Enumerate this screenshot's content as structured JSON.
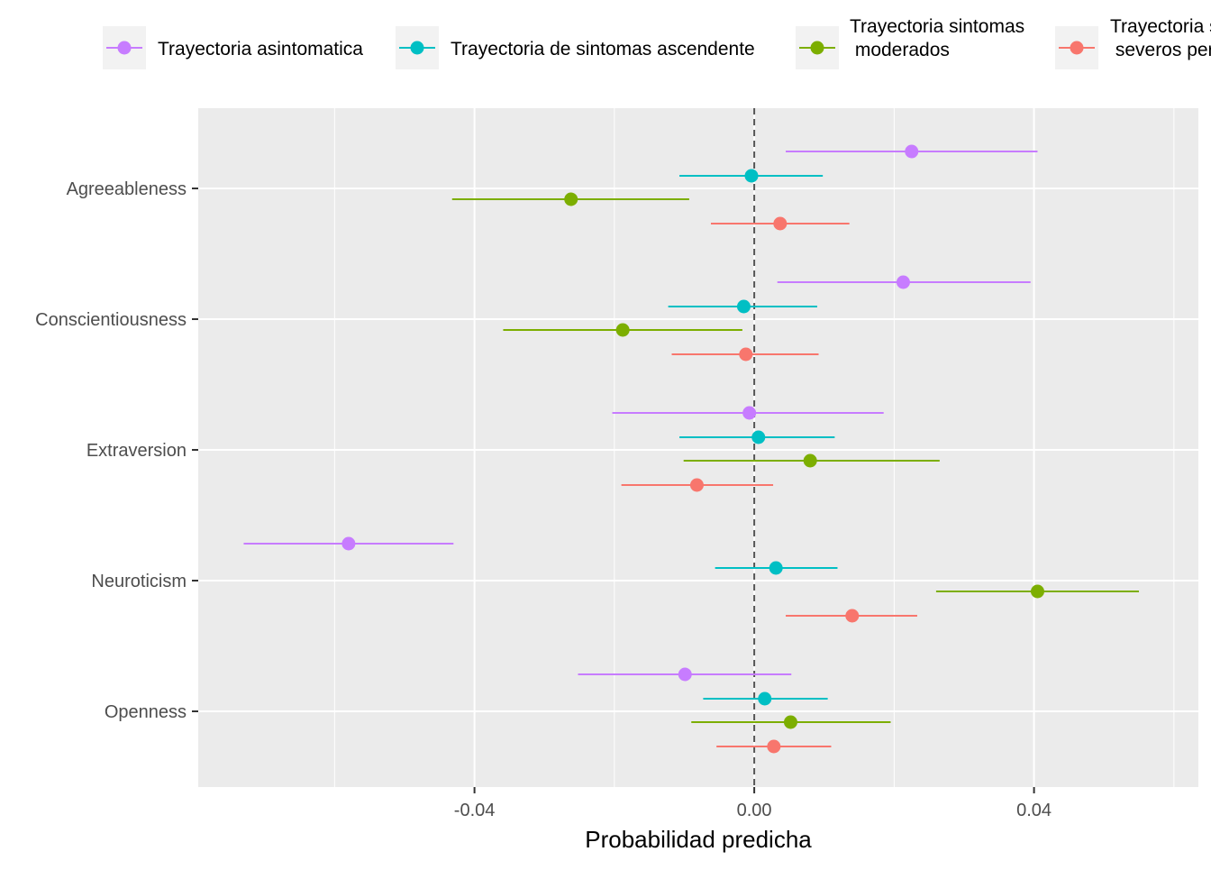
{
  "chart_data": {
    "type": "scatter",
    "subtype": "dot-and-whisker",
    "title": "",
    "xlabel": "Probabilidad predicha",
    "ylabel": "",
    "xlim": [
      -0.0795,
      0.0635
    ],
    "x_ticks": [
      {
        "value": -0.04,
        "label": "-0.04"
      },
      {
        "value": 0.0,
        "label": "0.00"
      },
      {
        "value": 0.04,
        "label": "0.04"
      }
    ],
    "x_minor_ticks": [
      -0.06,
      -0.02,
      0.02,
      0.06
    ],
    "reference_line": {
      "value": 0.0,
      "style": "dashed"
    },
    "grid": true,
    "legend_position": "top",
    "categories": [
      "Agreeableness",
      "Conscientiousness",
      "Extraversion",
      "Neuroticism",
      "Openness"
    ],
    "series": [
      {
        "name": "Trayectoria asintomatica",
        "color": "#C77CFF",
        "points": [
          {
            "category": "Agreeableness",
            "estimate": 0.0225,
            "lower": 0.0045,
            "upper": 0.0405
          },
          {
            "category": "Conscientiousness",
            "estimate": 0.0213,
            "lower": 0.0033,
            "upper": 0.0395
          },
          {
            "category": "Extraversion",
            "estimate": -0.0007,
            "lower": -0.0203,
            "upper": 0.0185
          },
          {
            "category": "Neuroticism",
            "estimate": -0.058,
            "lower": -0.073,
            "upper": -0.043
          },
          {
            "category": "Openness",
            "estimate": -0.0099,
            "lower": -0.0252,
            "upper": 0.0053
          }
        ]
      },
      {
        "name": "Trayectoria de sintomas ascendente",
        "color": "#00BFC4",
        "points": [
          {
            "category": "Agreeableness",
            "estimate": -0.0004,
            "lower": -0.0107,
            "upper": 0.0098
          },
          {
            "category": "Conscientiousness",
            "estimate": -0.0015,
            "lower": -0.0123,
            "upper": 0.009
          },
          {
            "category": "Extraversion",
            "estimate": 0.0006,
            "lower": -0.0107,
            "upper": 0.0115
          },
          {
            "category": "Neuroticism",
            "estimate": 0.0031,
            "lower": -0.0056,
            "upper": 0.0119
          },
          {
            "category": "Openness",
            "estimate": 0.0015,
            "lower": -0.0073,
            "upper": 0.0105
          }
        ]
      },
      {
        "name": "Trayectoria sintomas\n moderados",
        "color": "#7CAE00",
        "points": [
          {
            "category": "Agreeableness",
            "estimate": -0.0262,
            "lower": -0.0432,
            "upper": -0.0093
          },
          {
            "category": "Conscientiousness",
            "estimate": -0.0188,
            "lower": -0.0359,
            "upper": -0.0017
          },
          {
            "category": "Extraversion",
            "estimate": 0.008,
            "lower": -0.0101,
            "upper": 0.0265
          },
          {
            "category": "Neuroticism",
            "estimate": 0.0405,
            "lower": 0.026,
            "upper": 0.055
          },
          {
            "category": "Openness",
            "estimate": 0.0052,
            "lower": -0.009,
            "upper": 0.0195
          }
        ]
      },
      {
        "name": "Trayectoria sintomas\n severos persistentes",
        "color": "#F8766D",
        "points": [
          {
            "category": "Agreeableness",
            "estimate": 0.0037,
            "lower": -0.0062,
            "upper": 0.0136
          },
          {
            "category": "Conscientiousness",
            "estimate": -0.0012,
            "lower": -0.0118,
            "upper": 0.0092
          },
          {
            "category": "Extraversion",
            "estimate": -0.0082,
            "lower": -0.019,
            "upper": 0.0027
          },
          {
            "category": "Neuroticism",
            "estimate": 0.014,
            "lower": 0.0045,
            "upper": 0.0233
          },
          {
            "category": "Openness",
            "estimate": 0.0028,
            "lower": -0.0054,
            "upper": 0.011
          }
        ]
      }
    ]
  }
}
